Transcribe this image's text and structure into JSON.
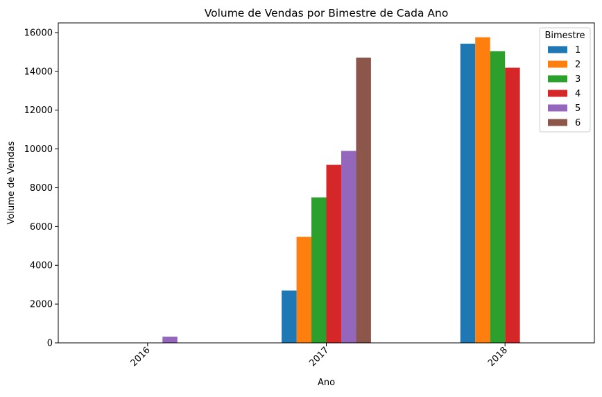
{
  "chart_data": {
    "type": "bar",
    "title": "Volume de Vendas por Bimestre de Cada Ano",
    "xlabel": "Ano",
    "ylabel": "Volume de Vendas",
    "categories": [
      "2016",
      "2017",
      "2018"
    ],
    "ylim": [
      0,
      16500
    ],
    "yticks": [
      0,
      2000,
      4000,
      6000,
      8000,
      10000,
      12000,
      14000,
      16000
    ],
    "ytick_labels": [
      "0",
      "2000",
      "4000",
      "6000",
      "8000",
      "10000",
      "12000",
      "14000",
      "16000"
    ],
    "grid": false,
    "legend": {
      "title": "Bimestre",
      "placement": "top-right"
    },
    "series": [
      {
        "name": "1",
        "color": "#1f77b4",
        "values": [
          null,
          2700,
          15430
        ]
      },
      {
        "name": "2",
        "color": "#ff7f0e",
        "values": [
          null,
          5470,
          15760
        ]
      },
      {
        "name": "3",
        "color": "#2ca02c",
        "values": [
          null,
          7500,
          15040
        ]
      },
      {
        "name": "4",
        "color": "#d62728",
        "values": [
          null,
          9180,
          14190
        ]
      },
      {
        "name": "5",
        "color": "#9467bd",
        "values": [
          320,
          9900,
          null
        ]
      },
      {
        "name": "6",
        "color": "#8c564b",
        "values": [
          null,
          14710,
          null
        ]
      }
    ]
  }
}
